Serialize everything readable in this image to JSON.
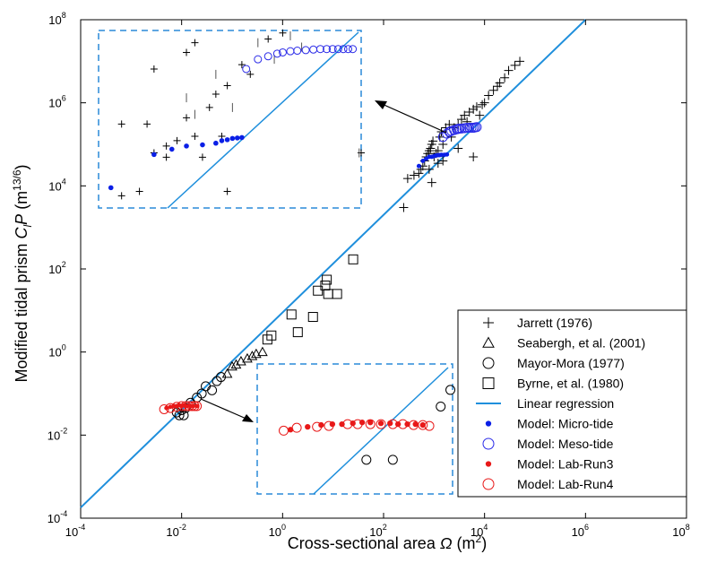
{
  "chart_data": {
    "type": "scatter",
    "xscale": "log",
    "yscale": "log",
    "xlim": [
      0.0001,
      100000000
    ],
    "ylim": [
      0.0001,
      100000000
    ],
    "grid": false,
    "legend_position": "bottom-right",
    "xlabel": {
      "text": "Cross-sectional area ",
      "symbol": "Ω",
      "unit": " (m",
      "unit_sup": "2",
      "close": ")"
    },
    "ylabel": {
      "text": "Modified tidal prism ",
      "symbol_c": "C",
      "symbol_sub": "l",
      "symbol_p": "P",
      "unit": " (m",
      "unit_sup": "13/6",
      "close": ")"
    },
    "x_ticks": [
      {
        "value": 0.0001,
        "base": "10",
        "exp": "-4"
      },
      {
        "value": 0.01,
        "base": "10",
        "exp": "-2"
      },
      {
        "value": 1,
        "base": "10",
        "exp": "0"
      },
      {
        "value": 100,
        "base": "10",
        "exp": "2"
      },
      {
        "value": 10000,
        "base": "10",
        "exp": "4"
      },
      {
        "value": 1000000,
        "base": "10",
        "exp": "6"
      },
      {
        "value": 100000000,
        "base": "10",
        "exp": "8"
      }
    ],
    "y_ticks": [
      {
        "value": 0.0001,
        "base": "10",
        "exp": "-4"
      },
      {
        "value": 0.01,
        "base": "10",
        "exp": "-2"
      },
      {
        "value": 1,
        "base": "10",
        "exp": "0"
      },
      {
        "value": 100,
        "base": "10",
        "exp": "2"
      },
      {
        "value": 10000,
        "base": "10",
        "exp": "4"
      },
      {
        "value": 1000000,
        "base": "10",
        "exp": "6"
      },
      {
        "value": 100000000,
        "base": "10",
        "exp": "8"
      }
    ],
    "regression": {
      "name": "Linear regression",
      "color": "#1f8fdc",
      "x": [
        0.0001,
        1000000
      ],
      "y": [
        0.00018,
        100000000
      ]
    },
    "series": [
      {
        "name": "Jarrett (1976)",
        "marker": "plus",
        "color": "#000000",
        "x": [
          300,
          400,
          500,
          550,
          600,
          650,
          700,
          750,
          800,
          850,
          900,
          950,
          1000,
          1100,
          1200,
          1300,
          1400,
          1500,
          1700,
          2000,
          2200,
          2500,
          3000,
          3500,
          4000,
          4500,
          5000,
          6000,
          7000,
          8000,
          9000,
          10000,
          12000,
          15000,
          18000,
          20000,
          25000,
          30000,
          40000,
          50000,
          250,
          800,
          1500,
          3000,
          6000,
          900,
          1200
        ],
        "y": [
          15000,
          18000,
          20000,
          25000,
          30000,
          40000,
          50000,
          60000,
          70000,
          80000,
          100000,
          120000,
          50000,
          60000,
          70000,
          150000,
          200000,
          100000,
          250000,
          300000,
          150000,
          250000,
          300000,
          400000,
          500000,
          350000,
          600000,
          700000,
          800000,
          500000,
          900000,
          1000000,
          1500000,
          2000000,
          2500000,
          3000000,
          4000000,
          6000000,
          8000000,
          10000000,
          3000,
          25000,
          40000,
          80000,
          50000,
          12000,
          35000
        ]
      },
      {
        "name": "Seabergh, et al. (2001)",
        "marker": "triangle",
        "color": "#000000",
        "x": [
          0.08,
          0.1,
          0.12,
          0.15,
          0.2,
          0.25,
          0.3,
          0.4
        ],
        "y": [
          0.3,
          0.45,
          0.5,
          0.6,
          0.7,
          0.8,
          0.9,
          1.0
        ]
      },
      {
        "name": "Mayor-Mora (1977)",
        "marker": "circle",
        "color": "#000000",
        "x": [
          0.008,
          0.009,
          0.01,
          0.011,
          0.012,
          0.015,
          0.02,
          0.025,
          0.03,
          0.04,
          0.05,
          0.06
        ],
        "y": [
          0.035,
          0.03,
          0.04,
          0.03,
          0.045,
          0.06,
          0.08,
          0.1,
          0.15,
          0.12,
          0.2,
          0.25
        ]
      },
      {
        "name": "Byrne, et al. (1980)",
        "marker": "square",
        "color": "#000000",
        "x": [
          0.5,
          0.6,
          1.5,
          2.0,
          4.0,
          5.0,
          7.0,
          7.5,
          8.0,
          12.0,
          25.0
        ],
        "y": [
          2.0,
          2.5,
          8.0,
          3.0,
          7.0,
          30.0,
          40.0,
          55.0,
          25.0,
          25.0,
          170.0
        ]
      },
      {
        "name": "Model: Micro-tide",
        "marker": "dot",
        "color": "#0a1fe6",
        "x": [
          500,
          600,
          700,
          800,
          900,
          1000,
          1100,
          1200,
          1300,
          1400,
          1600,
          1800
        ],
        "y": [
          30000,
          40000,
          45000,
          50000,
          50000,
          52000,
          54000,
          55000,
          55000,
          56000,
          56000,
          57000
        ]
      },
      {
        "name": "Model: Meso-tide",
        "marker": "open-circle",
        "color": "#2a2ae8",
        "x": [
          1500,
          1800,
          2000,
          2200,
          2500,
          2800,
          3000,
          3200,
          3500,
          4000,
          4500,
          5000,
          5500,
          6000,
          6500,
          7000
        ],
        "y": [
          150000,
          180000,
          200000,
          210000,
          220000,
          230000,
          235000,
          240000,
          240000,
          245000,
          250000,
          250000,
          250000,
          250000,
          255000,
          260000
        ]
      },
      {
        "name": "Model: Lab-Run3",
        "marker": "dot",
        "color": "#e81818",
        "x": [
          0.005,
          0.006,
          0.007,
          0.008,
          0.009,
          0.01,
          0.011,
          0.012,
          0.013,
          0.015,
          0.017,
          0.02
        ],
        "y": [
          0.045,
          0.048,
          0.05,
          0.05,
          0.052,
          0.05,
          0.052,
          0.05,
          0.05,
          0.05,
          0.05,
          0.05
        ]
      },
      {
        "name": "Model: Lab-Run4",
        "marker": "open-circle",
        "color": "#e81818",
        "x": [
          0.0045,
          0.006,
          0.008,
          0.01,
          0.012,
          0.014,
          0.016,
          0.018,
          0.02
        ],
        "y": [
          0.042,
          0.045,
          0.048,
          0.05,
          0.05,
          0.05,
          0.05,
          0.05,
          0.05
        ]
      }
    ],
    "inset_top": {
      "xlim": [
        300,
        8000
      ],
      "ylim": [
        3000,
        5000000
      ],
      "regression_visible": true,
      "jarrett": {
        "x": [
          400,
          500,
          550,
          600,
          700,
          800,
          900,
          1000,
          1100,
          1200,
          1300,
          1500,
          1800,
          2000,
          2500,
          3000,
          600,
          700,
          900,
          1000,
          1400,
          400,
          1500,
          8000
        ],
        "y": [
          5000,
          6000,
          100000,
          30000,
          25000,
          50000,
          130000,
          60000,
          25000,
          200000,
          350000,
          500000,
          1200000,
          800000,
          3500000,
          4500000,
          1000000,
          40000,
          2000000,
          3000000,
          60000,
          100000,
          6000,
          30000
        ]
      },
      "jarrett_bars": {
        "x": [
          900,
          1000,
          1300,
          1600,
          2200,
          2700,
          3300,
          3800,
          7800
        ],
        "y": [
          300000,
          150000,
          800000,
          200000,
          3000000,
          1500000,
          4000000,
          2500000,
          30000
        ]
      },
      "micro": {
        "x": [
          350,
          600,
          750,
          900,
          1100,
          1300,
          1400,
          1500,
          1600,
          1700,
          1800
        ],
        "y": [
          7000,
          28000,
          35000,
          40000,
          42000,
          45000,
          50000,
          52000,
          55000,
          56000,
          57000
        ]
      },
      "meso": {
        "x": [
          1900,
          2200,
          2500,
          2800,
          3000,
          3300,
          3600,
          4000,
          4400,
          4800,
          5200,
          5600,
          6000,
          6400,
          6800,
          7200
        ],
        "y": [
          1000000,
          1500000,
          1700000,
          1900000,
          2000000,
          2100000,
          2150000,
          2200000,
          2250000,
          2300000,
          2300000,
          2300000,
          2300000,
          2300000,
          2300000,
          2300000
        ]
      }
    },
    "inset_bottom": {
      "xlim": [
        0.003,
        0.06
      ],
      "ylim": [
        0.01,
        0.2
      ],
      "run3": {
        "x": [
          0.005,
          0.0065,
          0.008,
          0.0095,
          0.011,
          0.013,
          0.015,
          0.017,
          0.02,
          0.023,
          0.026,
          0.03,
          0.034,
          0.038
        ],
        "y": [
          0.044,
          0.047,
          0.049,
          0.05,
          0.05,
          0.051,
          0.052,
          0.052,
          0.051,
          0.051,
          0.05,
          0.05,
          0.05,
          0.049
        ]
      },
      "run4": {
        "x": [
          0.0045,
          0.0055,
          0.0075,
          0.009,
          0.012,
          0.014,
          0.017,
          0.02,
          0.024,
          0.028,
          0.033,
          0.038,
          0.042
        ],
        "y": [
          0.043,
          0.046,
          0.047,
          0.048,
          0.05,
          0.05,
          0.05,
          0.05,
          0.05,
          0.05,
          0.049,
          0.049,
          0.048
        ]
      },
      "mayor": {
        "x": [
          0.016,
          0.024,
          0.05,
          0.058
        ],
        "y": [
          0.022,
          0.022,
          0.075,
          0.11
        ]
      }
    }
  }
}
